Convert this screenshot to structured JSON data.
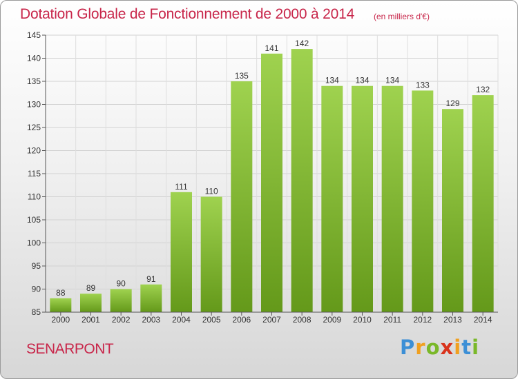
{
  "title": "Dotation Globale de Fonctionnement de 2000 à 2014",
  "unit_note": "(en milliers d'€)",
  "commune": "SENARPONT",
  "brand": {
    "letters": [
      "P",
      "r",
      "o",
      "x",
      "i",
      "t",
      "i"
    ],
    "colors": [
      "#3c8fd6",
      "#f0a020",
      "#7ab829",
      "#d9331c",
      "#f0a020",
      "#3c8fd6",
      "#7ab829"
    ]
  },
  "chart_data": {
    "type": "bar",
    "title": "Dotation Globale de Fonctionnement de 2000 à 2014",
    "unit": "(en milliers d'€)",
    "categories": [
      "2000",
      "2001",
      "2002",
      "2003",
      "2004",
      "2005",
      "2006",
      "2007",
      "2008",
      "2009",
      "2010",
      "2011",
      "2012",
      "2013",
      "2014"
    ],
    "values": [
      88,
      89,
      90,
      91,
      111,
      110,
      135,
      141,
      142,
      134,
      134,
      134,
      133,
      129,
      132
    ],
    "ylim": [
      85,
      145
    ],
    "yticks": [
      85,
      90,
      95,
      100,
      105,
      110,
      115,
      120,
      125,
      130,
      135,
      140,
      145
    ],
    "grid": true,
    "bar_color": "#8dc63f",
    "bar_color_dark": "#6aa01e"
  }
}
